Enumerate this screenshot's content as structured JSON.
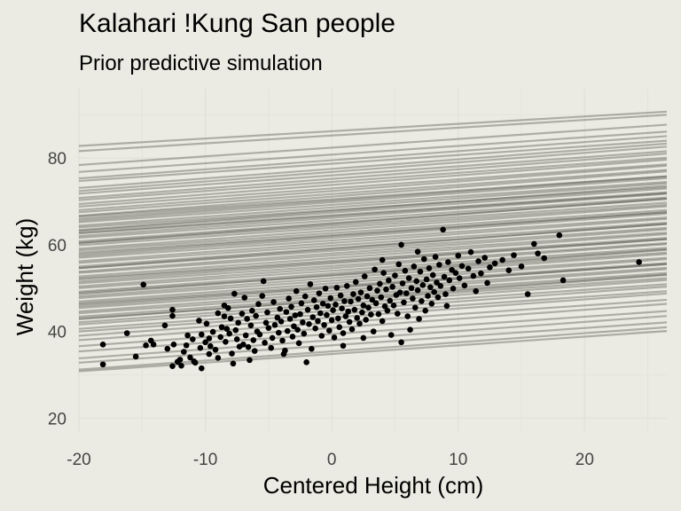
{
  "chart_data": {
    "type": "line",
    "title": "Kalahari !Kung San people",
    "subtitle": "Prior predictive simulation",
    "xlabel": "Centered Height (cm)",
    "ylabel": "Weight (kg)",
    "xlim": [
      -20,
      26.5
    ],
    "ylim": [
      17,
      96
    ],
    "x_ticks": [
      -20,
      -10,
      0,
      10,
      20
    ],
    "y_ticks": [
      20,
      40,
      60,
      80
    ],
    "grid": true,
    "legend": "none",
    "colors": {
      "background": "#ebebe3",
      "line": "#4a4a42",
      "point": "#000000",
      "grid": "#e2e2da"
    },
    "prior_lines": [
      {
        "a": 86.2,
        "b": 0.17
      },
      {
        "a": 85.2,
        "b": 0.18
      },
      {
        "a": 82.4,
        "b": 0.2
      },
      {
        "a": 80.8,
        "b": 0.2
      },
      {
        "a": 79.5,
        "b": 0.21
      },
      {
        "a": 78.7,
        "b": 0.2
      },
      {
        "a": 77.5,
        "b": 0.22
      },
      {
        "a": 76.8,
        "b": 0.22
      },
      {
        "a": 76.0,
        "b": 0.21
      },
      {
        "a": 75.2,
        "b": 0.22
      },
      {
        "a": 74.5,
        "b": 0.21
      },
      {
        "a": 73.8,
        "b": 0.22
      },
      {
        "a": 73.0,
        "b": 0.21
      },
      {
        "a": 72.4,
        "b": 0.22
      },
      {
        "a": 71.7,
        "b": 0.21
      },
      {
        "a": 71.1,
        "b": 0.22
      },
      {
        "a": 70.5,
        "b": 0.2
      },
      {
        "a": 69.8,
        "b": 0.21
      },
      {
        "a": 69.2,
        "b": 0.2
      },
      {
        "a": 68.6,
        "b": 0.21
      },
      {
        "a": 68.0,
        "b": 0.2
      },
      {
        "a": 67.4,
        "b": 0.21
      },
      {
        "a": 66.8,
        "b": 0.2
      },
      {
        "a": 66.2,
        "b": 0.21
      },
      {
        "a": 65.6,
        "b": 0.2
      },
      {
        "a": 65.0,
        "b": 0.21
      },
      {
        "a": 64.4,
        "b": 0.2
      },
      {
        "a": 63.9,
        "b": 0.2
      },
      {
        "a": 63.3,
        "b": 0.21
      },
      {
        "a": 62.7,
        "b": 0.2
      },
      {
        "a": 62.2,
        "b": 0.2
      },
      {
        "a": 61.6,
        "b": 0.21
      },
      {
        "a": 61.0,
        "b": 0.2
      },
      {
        "a": 60.4,
        "b": 0.21
      },
      {
        "a": 59.8,
        "b": 0.2
      },
      {
        "a": 59.2,
        "b": 0.21
      },
      {
        "a": 58.6,
        "b": 0.2
      },
      {
        "a": 58.0,
        "b": 0.21
      },
      {
        "a": 57.5,
        "b": 0.2
      },
      {
        "a": 56.9,
        "b": 0.21
      },
      {
        "a": 56.3,
        "b": 0.2
      },
      {
        "a": 55.7,
        "b": 0.21
      },
      {
        "a": 55.1,
        "b": 0.2
      },
      {
        "a": 54.6,
        "b": 0.21
      },
      {
        "a": 54.0,
        "b": 0.2
      },
      {
        "a": 53.4,
        "b": 0.21
      },
      {
        "a": 52.9,
        "b": 0.2
      },
      {
        "a": 52.3,
        "b": 0.21
      },
      {
        "a": 51.7,
        "b": 0.2
      },
      {
        "a": 51.1,
        "b": 0.21
      },
      {
        "a": 50.5,
        "b": 0.2
      },
      {
        "a": 50.0,
        "b": 0.21
      },
      {
        "a": 49.4,
        "b": 0.2
      },
      {
        "a": 48.8,
        "b": 0.21
      },
      {
        "a": 48.2,
        "b": 0.2
      },
      {
        "a": 47.6,
        "b": 0.21
      },
      {
        "a": 47.0,
        "b": 0.2
      },
      {
        "a": 46.3,
        "b": 0.21
      },
      {
        "a": 45.6,
        "b": 0.2
      },
      {
        "a": 44.8,
        "b": 0.21
      },
      {
        "a": 44.0,
        "b": 0.2
      },
      {
        "a": 43.2,
        "b": 0.21
      },
      {
        "a": 42.0,
        "b": 0.2
      },
      {
        "a": 40.8,
        "b": 0.21
      },
      {
        "a": 39.4,
        "b": 0.2
      },
      {
        "a": 38.0,
        "b": 0.21
      },
      {
        "a": 36.8,
        "b": 0.2
      },
      {
        "a": 35.4,
        "b": 0.21
      },
      {
        "a": 34.8,
        "b": 0.2
      },
      {
        "a": 66.6,
        "b": 0.2
      },
      {
        "a": 64.8,
        "b": 0.22
      },
      {
        "a": 62.0,
        "b": 0.21
      },
      {
        "a": 59.0,
        "b": 0.22
      },
      {
        "a": 56.0,
        "b": 0.2
      },
      {
        "a": 53.0,
        "b": 0.22
      },
      {
        "a": 50.2,
        "b": 0.2
      },
      {
        "a": 47.2,
        "b": 0.22
      },
      {
        "a": 70.2,
        "b": 0.21
      },
      {
        "a": 67.8,
        "b": 0.22
      }
    ],
    "points": [
      {
        "x": -18.1,
        "y": 32.4
      },
      {
        "x": -18.1,
        "y": 37.0
      },
      {
        "x": -16.2,
        "y": 39.6
      },
      {
        "x": -15.5,
        "y": 34.2
      },
      {
        "x": -14.9,
        "y": 50.8
      },
      {
        "x": -14.7,
        "y": 36.8
      },
      {
        "x": -14.3,
        "y": 37.9
      },
      {
        "x": -14.1,
        "y": 37.0
      },
      {
        "x": -13.2,
        "y": 41.4
      },
      {
        "x": -12.6,
        "y": 43.6
      },
      {
        "x": -12.6,
        "y": 45.0
      },
      {
        "x": -12.6,
        "y": 32.0
      },
      {
        "x": -12.5,
        "y": 37.0
      },
      {
        "x": -12.2,
        "y": 33.0
      },
      {
        "x": -12.0,
        "y": 33.5
      },
      {
        "x": -11.9,
        "y": 32.1
      },
      {
        "x": -11.5,
        "y": 36.8
      },
      {
        "x": -11.4,
        "y": 39.1
      },
      {
        "x": -11.2,
        "y": 34.0
      },
      {
        "x": -11.0,
        "y": 38.2
      },
      {
        "x": -10.9,
        "y": 33.1
      },
      {
        "x": -10.8,
        "y": 32.8
      },
      {
        "x": -10.5,
        "y": 42.5
      },
      {
        "x": -10.4,
        "y": 36.2
      },
      {
        "x": -10.3,
        "y": 39.3
      },
      {
        "x": -10.3,
        "y": 31.5
      },
      {
        "x": -10.0,
        "y": 37.5
      },
      {
        "x": -9.7,
        "y": 38.4
      },
      {
        "x": -9.7,
        "y": 34.8
      },
      {
        "x": -9.6,
        "y": 36.6
      },
      {
        "x": -9.4,
        "y": 39.9
      },
      {
        "x": -9.2,
        "y": 35.8
      },
      {
        "x": -9.0,
        "y": 44.2
      },
      {
        "x": -9.0,
        "y": 33.9
      },
      {
        "x": -8.8,
        "y": 38.7
      },
      {
        "x": -8.7,
        "y": 41.0
      },
      {
        "x": -8.5,
        "y": 43.5
      },
      {
        "x": -8.5,
        "y": 46.0
      },
      {
        "x": -8.4,
        "y": 37.6
      },
      {
        "x": -8.3,
        "y": 40.6
      },
      {
        "x": -8.2,
        "y": 45.4
      },
      {
        "x": -8.1,
        "y": 39.5
      },
      {
        "x": -8.0,
        "y": 43.0
      },
      {
        "x": -7.9,
        "y": 34.9
      },
      {
        "x": -7.8,
        "y": 32.6
      },
      {
        "x": -7.6,
        "y": 40.3
      },
      {
        "x": -7.5,
        "y": 38.2
      },
      {
        "x": -7.4,
        "y": 42.0
      },
      {
        "x": -7.3,
        "y": 36.5
      },
      {
        "x": -7.1,
        "y": 44.1
      },
      {
        "x": -7.0,
        "y": 37.0
      },
      {
        "x": -6.9,
        "y": 47.8
      },
      {
        "x": -6.8,
        "y": 39.1
      },
      {
        "x": -6.7,
        "y": 42.9
      },
      {
        "x": -6.6,
        "y": 36.4
      },
      {
        "x": -6.4,
        "y": 41.4
      },
      {
        "x": -6.3,
        "y": 44.8
      },
      {
        "x": -6.2,
        "y": 38.0
      },
      {
        "x": -6.1,
        "y": 35.5
      },
      {
        "x": -6.0,
        "y": 43.6
      },
      {
        "x": -5.9,
        "y": 40.0
      },
      {
        "x": -5.8,
        "y": 46.3
      },
      {
        "x": -5.7,
        "y": 39.3
      },
      {
        "x": -5.5,
        "y": 48.2
      },
      {
        "x": -5.4,
        "y": 51.6
      },
      {
        "x": -5.3,
        "y": 37.4
      },
      {
        "x": -5.2,
        "y": 42.0
      },
      {
        "x": -5.1,
        "y": 44.4
      },
      {
        "x": -5.0,
        "y": 40.8
      },
      {
        "x": -4.8,
        "y": 36.2
      },
      {
        "x": -4.7,
        "y": 38.5
      },
      {
        "x": -4.6,
        "y": 46.8
      },
      {
        "x": -4.5,
        "y": 41.5
      },
      {
        "x": -4.3,
        "y": 43.2
      },
      {
        "x": -4.2,
        "y": 39.7
      },
      {
        "x": -4.1,
        "y": 45.2
      },
      {
        "x": -4.0,
        "y": 42.3
      },
      {
        "x": -3.9,
        "y": 37.9
      },
      {
        "x": -3.8,
        "y": 34.8
      },
      {
        "x": -3.6,
        "y": 44.5
      },
      {
        "x": -3.5,
        "y": 40.1
      },
      {
        "x": -3.4,
        "y": 47.6
      },
      {
        "x": -3.3,
        "y": 42.9
      },
      {
        "x": -3.2,
        "y": 45.7
      },
      {
        "x": -3.1,
        "y": 38.8
      },
      {
        "x": -3.0,
        "y": 41.2
      },
      {
        "x": -2.9,
        "y": 43.7
      },
      {
        "x": -2.8,
        "y": 49.3
      },
      {
        "x": -2.7,
        "y": 40.4
      },
      {
        "x": -2.6,
        "y": 37.3
      },
      {
        "x": -2.5,
        "y": 44.0
      },
      {
        "x": -2.4,
        "y": 46.5
      },
      {
        "x": -2.3,
        "y": 42.1
      },
      {
        "x": -2.2,
        "y": 39.5
      },
      {
        "x": -2.1,
        "y": 48.1
      },
      {
        "x": -2.0,
        "y": 32.9
      },
      {
        "x": -1.9,
        "y": 45.0
      },
      {
        "x": -1.8,
        "y": 41.7
      },
      {
        "x": -1.6,
        "y": 36.0
      },
      {
        "x": -1.5,
        "y": 43.3
      },
      {
        "x": -1.4,
        "y": 47.2
      },
      {
        "x": -1.3,
        "y": 40.7
      },
      {
        "x": -1.2,
        "y": 45.6
      },
      {
        "x": -1.1,
        "y": 42.4
      },
      {
        "x": -1.0,
        "y": 48.8
      },
      {
        "x": -0.9,
        "y": 44.2
      },
      {
        "x": -0.8,
        "y": 39.0
      },
      {
        "x": -0.7,
        "y": 46.4
      },
      {
        "x": -0.6,
        "y": 41.5
      },
      {
        "x": -0.5,
        "y": 49.9
      },
      {
        "x": -0.4,
        "y": 43.8
      },
      {
        "x": -0.3,
        "y": 45.9
      },
      {
        "x": -0.2,
        "y": 40.2
      },
      {
        "x": -0.1,
        "y": 47.7
      },
      {
        "x": 0.0,
        "y": 42.6
      },
      {
        "x": 0.1,
        "y": 44.9
      },
      {
        "x": 0.2,
        "y": 38.6
      },
      {
        "x": 0.3,
        "y": 46.2
      },
      {
        "x": 0.4,
        "y": 50.1
      },
      {
        "x": 0.5,
        "y": 43.0
      },
      {
        "x": 0.6,
        "y": 41.0
      },
      {
        "x": 0.7,
        "y": 48.3
      },
      {
        "x": 0.8,
        "y": 45.3
      },
      {
        "x": 0.9,
        "y": 39.6
      },
      {
        "x": 1.0,
        "y": 47.0
      },
      {
        "x": 1.1,
        "y": 43.5
      },
      {
        "x": 1.2,
        "y": 50.5
      },
      {
        "x": 1.3,
        "y": 44.6
      },
      {
        "x": 1.4,
        "y": 42.2
      },
      {
        "x": 1.5,
        "y": 46.9
      },
      {
        "x": 1.6,
        "y": 40.5
      },
      {
        "x": 1.7,
        "y": 48.6
      },
      {
        "x": 1.8,
        "y": 45.0
      },
      {
        "x": 1.9,
        "y": 51.4
      },
      {
        "x": 2.0,
        "y": 43.1
      },
      {
        "x": 2.1,
        "y": 47.5
      },
      {
        "x": 2.2,
        "y": 41.8
      },
      {
        "x": 2.3,
        "y": 49.0
      },
      {
        "x": 2.4,
        "y": 44.4
      },
      {
        "x": 2.5,
        "y": 46.0
      },
      {
        "x": 2.6,
        "y": 52.7
      },
      {
        "x": 2.7,
        "y": 42.7
      },
      {
        "x": 2.8,
        "y": 48.1
      },
      {
        "x": 2.9,
        "y": 45.5
      },
      {
        "x": 3.0,
        "y": 50.0
      },
      {
        "x": 3.1,
        "y": 43.9
      },
      {
        "x": 3.2,
        "y": 47.3
      },
      {
        "x": 3.3,
        "y": 40.0
      },
      {
        "x": 3.4,
        "y": 54.3
      },
      {
        "x": 3.5,
        "y": 46.5
      },
      {
        "x": 3.6,
        "y": 49.4
      },
      {
        "x": 3.7,
        "y": 44.0
      },
      {
        "x": 3.8,
        "y": 51.0
      },
      {
        "x": 3.9,
        "y": 47.9
      },
      {
        "x": 4.0,
        "y": 42.4
      },
      {
        "x": 4.1,
        "y": 53.5
      },
      {
        "x": 4.2,
        "y": 45.8
      },
      {
        "x": 4.3,
        "y": 49.7
      },
      {
        "x": 4.4,
        "y": 44.8
      },
      {
        "x": 4.5,
        "y": 51.8
      },
      {
        "x": 4.6,
        "y": 47.1
      },
      {
        "x": 4.7,
        "y": 39.2
      },
      {
        "x": 4.8,
        "y": 50.3
      },
      {
        "x": 4.9,
        "y": 46.0
      },
      {
        "x": 5.0,
        "y": 52.9
      },
      {
        "x": 5.1,
        "y": 48.4
      },
      {
        "x": 5.2,
        "y": 44.1
      },
      {
        "x": 5.3,
        "y": 55.5
      },
      {
        "x": 5.4,
        "y": 49.0
      },
      {
        "x": 5.5,
        "y": 60.0
      },
      {
        "x": 5.5,
        "y": 37.5
      },
      {
        "x": 5.6,
        "y": 51.1
      },
      {
        "x": 5.7,
        "y": 46.7
      },
      {
        "x": 5.8,
        "y": 54.0
      },
      {
        "x": 5.9,
        "y": 48.8
      },
      {
        "x": 6.0,
        "y": 43.5
      },
      {
        "x": 6.1,
        "y": 52.3
      },
      {
        "x": 6.2,
        "y": 40.4
      },
      {
        "x": 6.3,
        "y": 50.0
      },
      {
        "x": 6.4,
        "y": 47.6
      },
      {
        "x": 6.5,
        "y": 55.0
      },
      {
        "x": 6.6,
        "y": 45.5
      },
      {
        "x": 6.7,
        "y": 51.6
      },
      {
        "x": 6.8,
        "y": 49.5
      },
      {
        "x": 6.9,
        "y": 42.9
      },
      {
        "x": 7.0,
        "y": 53.8
      },
      {
        "x": 7.1,
        "y": 47.0
      },
      {
        "x": 7.2,
        "y": 50.7
      },
      {
        "x": 7.3,
        "y": 56.7
      },
      {
        "x": 7.4,
        "y": 44.8
      },
      {
        "x": 7.5,
        "y": 52.0
      },
      {
        "x": 7.6,
        "y": 48.2
      },
      {
        "x": 7.7,
        "y": 54.6
      },
      {
        "x": 7.8,
        "y": 50.2
      },
      {
        "x": 7.9,
        "y": 46.4
      },
      {
        "x": 8.0,
        "y": 53.0
      },
      {
        "x": 8.1,
        "y": 49.1
      },
      {
        "x": 8.2,
        "y": 57.2
      },
      {
        "x": 8.3,
        "y": 51.3
      },
      {
        "x": 8.4,
        "y": 47.9
      },
      {
        "x": 8.5,
        "y": 55.4
      },
      {
        "x": 8.6,
        "y": 50.5
      },
      {
        "x": 8.8,
        "y": 63.5
      },
      {
        "x": 8.9,
        "y": 52.6
      },
      {
        "x": 9.0,
        "y": 48.6
      },
      {
        "x": 9.2,
        "y": 56.0
      },
      {
        "x": 9.3,
        "y": 51.8
      },
      {
        "x": 9.5,
        "y": 54.2
      },
      {
        "x": 9.6,
        "y": 49.9
      },
      {
        "x": 9.8,
        "y": 53.5
      },
      {
        "x": 10.0,
        "y": 57.5
      },
      {
        "x": 10.1,
        "y": 52.3
      },
      {
        "x": 10.3,
        "y": 55.1
      },
      {
        "x": 10.5,
        "y": 50.6
      },
      {
        "x": 10.8,
        "y": 54.5
      },
      {
        "x": 11.0,
        "y": 58.3
      },
      {
        "x": 11.2,
        "y": 52.8
      },
      {
        "x": 11.4,
        "y": 49.3
      },
      {
        "x": 11.6,
        "y": 56.2
      },
      {
        "x": 11.8,
        "y": 53.4
      },
      {
        "x": 12.1,
        "y": 57.0
      },
      {
        "x": 12.3,
        "y": 51.2
      },
      {
        "x": 12.5,
        "y": 54.8
      },
      {
        "x": 12.9,
        "y": 55.7
      },
      {
        "x": 13.5,
        "y": 56.5
      },
      {
        "x": 14.0,
        "y": 54.1
      },
      {
        "x": 14.4,
        "y": 57.6
      },
      {
        "x": 15.0,
        "y": 55.0
      },
      {
        "x": 15.5,
        "y": 48.6
      },
      {
        "x": 16.0,
        "y": 60.2
      },
      {
        "x": 16.3,
        "y": 58.0
      },
      {
        "x": 16.8,
        "y": 56.9
      },
      {
        "x": 18.0,
        "y": 62.2
      },
      {
        "x": 18.3,
        "y": 51.8
      },
      {
        "x": 24.3,
        "y": 56.0
      },
      {
        "x": -13.0,
        "y": 36.0
      },
      {
        "x": -11.7,
        "y": 35.3
      },
      {
        "x": -9.9,
        "y": 41.8
      },
      {
        "x": -7.7,
        "y": 48.7
      },
      {
        "x": -6.5,
        "y": 33.4
      },
      {
        "x": -3.7,
        "y": 35.6
      },
      {
        "x": -1.7,
        "y": 50.9
      },
      {
        "x": 0.9,
        "y": 36.7
      },
      {
        "x": 2.5,
        "y": 38.5
      },
      {
        "x": 4.0,
        "y": 56.5
      },
      {
        "x": 6.8,
        "y": 58.4
      },
      {
        "x": 9.1,
        "y": 45.9
      }
    ]
  }
}
